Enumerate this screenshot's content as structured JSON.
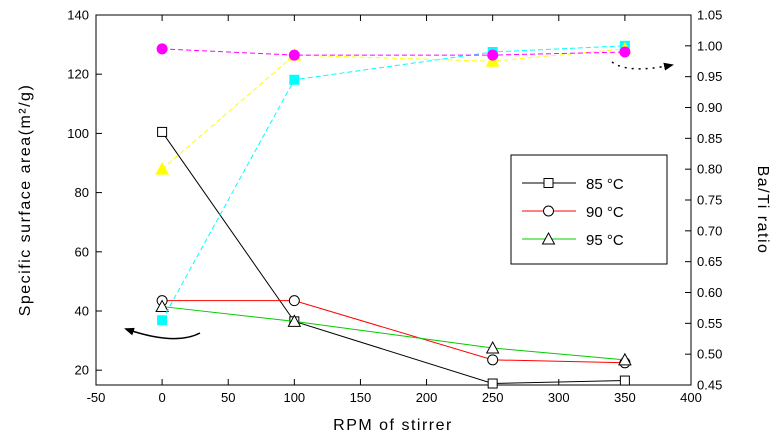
{
  "chart_data": {
    "type": "line",
    "xlabel": "RPM of stirrer",
    "ylabel_left": "Specific surface area(m²/g)",
    "ylabel_right": "Ba/Ti ratio",
    "xlim": [
      -50,
      400
    ],
    "xticks": [
      "-50",
      "0",
      "50",
      "100",
      "150",
      "200",
      "250",
      "300",
      "350",
      "400"
    ],
    "ylim_left": [
      15,
      140
    ],
    "yticks_left": [
      "20",
      "40",
      "60",
      "80",
      "100",
      "120",
      "140"
    ],
    "ylim_right": [
      0.45,
      1.05
    ],
    "yticks_right": [
      "0.45",
      "0.50",
      "0.55",
      "0.60",
      "0.65",
      "0.70",
      "0.75",
      "0.80",
      "0.85",
      "0.90",
      "0.95",
      "1.00",
      "1.05"
    ],
    "legend_position": "right-center",
    "series": [
      {
        "name": "85 °C",
        "axis": "left",
        "marker": "square-open",
        "color": "#000000",
        "dashed": false,
        "x": [
          0,
          100,
          250,
          350
        ],
        "y": [
          100.5,
          36.5,
          15.5,
          16.5
        ]
      },
      {
        "name": "90 °C",
        "axis": "left",
        "marker": "circle-open",
        "color": "#ff0000",
        "dashed": false,
        "x": [
          0,
          100,
          250,
          350
        ],
        "y": [
          43.5,
          43.5,
          23.5,
          22.5
        ]
      },
      {
        "name": "95 °C",
        "axis": "left",
        "marker": "triangle-open",
        "color": "#00cc00",
        "dashed": false,
        "x": [
          0,
          100,
          250,
          350
        ],
        "y": [
          41.5,
          36.5,
          27.5,
          23.5
        ]
      },
      {
        "axis": "right",
        "marker": "square-filled",
        "color": "#00ffff",
        "dashed": true,
        "x": [
          0,
          100,
          250,
          350
        ],
        "y": [
          0.555,
          0.945,
          0.99,
          1.0
        ]
      },
      {
        "axis": "right",
        "marker": "triangle-filled",
        "color": "#ffff00",
        "dashed": true,
        "x": [
          0,
          100,
          250,
          350
        ],
        "y": [
          0.8,
          0.985,
          0.975,
          0.995
        ]
      },
      {
        "axis": "right",
        "marker": "circle-filled",
        "color": "#ff00ff",
        "dashed": true,
        "x": [
          0,
          100,
          250,
          350
        ],
        "y": [
          0.995,
          0.985,
          0.985,
          0.99
        ]
      }
    ]
  }
}
